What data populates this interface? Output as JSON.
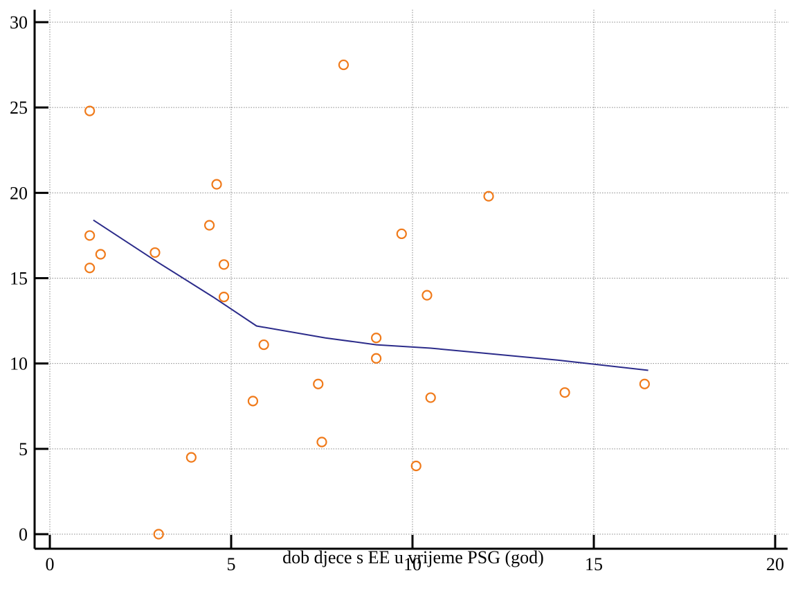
{
  "chart_data": {
    "type": "scatter",
    "title": "",
    "xlabel": "dob djece s EE u vrijeme PSG (god)",
    "ylabel": "",
    "xlim": [
      0,
      20
    ],
    "ylim": [
      0,
      30
    ],
    "x_ticks": [
      0,
      5,
      10,
      15,
      20
    ],
    "y_ticks": [
      0,
      5,
      10,
      15,
      20,
      25,
      30
    ],
    "grid": true,
    "colors": {
      "points": "#f07a1a",
      "trend": "#2b2b8a",
      "axes": "#000000",
      "grid": "#888888"
    },
    "series": [
      {
        "kind": "points",
        "points": [
          [
            1.1,
            24.8
          ],
          [
            1.1,
            17.5
          ],
          [
            1.1,
            15.6
          ],
          [
            1.4,
            16.4
          ],
          [
            2.9,
            16.5
          ],
          [
            3.0,
            0.0
          ],
          [
            3.9,
            4.5
          ],
          [
            4.4,
            18.1
          ],
          [
            4.6,
            20.5
          ],
          [
            4.8,
            15.8
          ],
          [
            4.8,
            13.9
          ],
          [
            5.6,
            7.8
          ],
          [
            5.9,
            11.1
          ],
          [
            7.4,
            8.8
          ],
          [
            7.5,
            5.4
          ],
          [
            8.1,
            27.5
          ],
          [
            9.0,
            11.5
          ],
          [
            9.0,
            10.3
          ],
          [
            9.7,
            17.6
          ],
          [
            10.1,
            4.0
          ],
          [
            10.4,
            14.0
          ],
          [
            10.5,
            8.0
          ],
          [
            12.1,
            19.8
          ],
          [
            14.2,
            8.3
          ],
          [
            16.4,
            8.8
          ]
        ]
      },
      {
        "kind": "trend-line",
        "points": [
          [
            1.2,
            18.4
          ],
          [
            3.0,
            15.9
          ],
          [
            4.5,
            13.9
          ],
          [
            5.7,
            12.2
          ],
          [
            7.6,
            11.5
          ],
          [
            9.0,
            11.1
          ],
          [
            10.5,
            10.9
          ],
          [
            12.0,
            10.6
          ],
          [
            14.0,
            10.2
          ],
          [
            16.5,
            9.6
          ]
        ]
      }
    ]
  }
}
